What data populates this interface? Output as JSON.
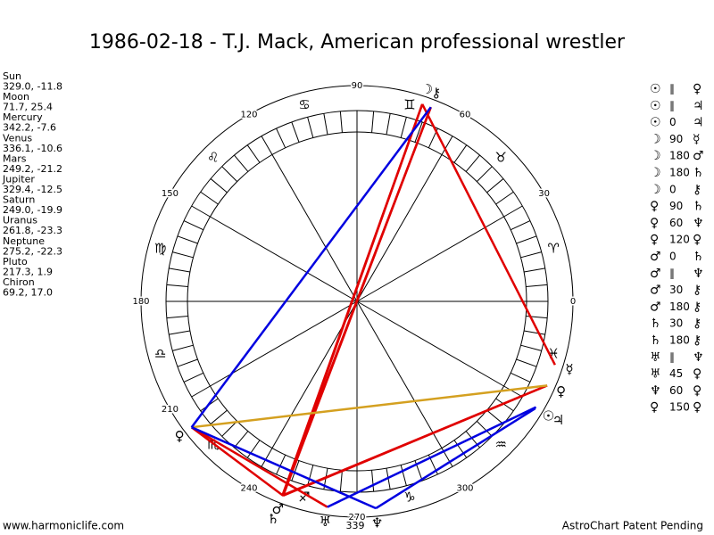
{
  "title": "1986-02-18 - T.J. Mack, American professional wrestler",
  "planets": [
    {
      "name": "Sun",
      "position": "329.0, -11.8",
      "glyph": "☉"
    },
    {
      "name": "Moon",
      "position": "71.7, 25.4",
      "glyph": "☽"
    },
    {
      "name": "Mercury",
      "position": "342.2, -7.6",
      "glyph": "☿"
    },
    {
      "name": "Venus",
      "position": "336.1, -10.6",
      "glyph": "♀"
    },
    {
      "name": "Mars",
      "position": "249.2, -21.2",
      "glyph": "♂"
    },
    {
      "name": "Jupiter",
      "position": "329.4, -12.5",
      "glyph": "♃"
    },
    {
      "name": "Saturn",
      "position": "249.0, -19.9",
      "glyph": "♄"
    },
    {
      "name": "Uranus",
      "position": "261.8, -23.3",
      "glyph": "♅"
    },
    {
      "name": "Neptune",
      "position": "275.2, -22.3",
      "glyph": "♆"
    },
    {
      "name": "Pluto",
      "position": "217.3, 1.9",
      "glyph": "♀"
    },
    {
      "name": "Chiron",
      "position": "69.2, 17.0",
      "glyph": "⚷"
    }
  ],
  "aspects": [
    [
      "☉",
      "∥",
      "♀"
    ],
    [
      "☉",
      "∥",
      "♃"
    ],
    [
      "☉",
      "0",
      "♃"
    ],
    [
      "☽",
      "90",
      "☿"
    ],
    [
      "☽",
      "180",
      "♂"
    ],
    [
      "☽",
      "180",
      "♄"
    ],
    [
      "☽",
      "0",
      "⚷"
    ],
    [
      "♀",
      "90",
      "♄"
    ],
    [
      "♀",
      "60",
      "♆"
    ],
    [
      "♀",
      "120",
      "♀"
    ],
    [
      "♂",
      "0",
      "♄"
    ],
    [
      "♂",
      "∥",
      "♆"
    ],
    [
      "♂",
      "30",
      "⚷"
    ],
    [
      "♂",
      "180",
      "⚷"
    ],
    [
      "♄",
      "30",
      "⚷"
    ],
    [
      "♄",
      "180",
      "⚷"
    ],
    [
      "♅",
      "∥",
      "♆"
    ],
    [
      "♅",
      "45",
      "♀"
    ],
    [
      "♆",
      "60",
      "♀"
    ],
    [
      "♀",
      "150",
      "♀"
    ]
  ],
  "wheel": {
    "degree_labels": [
      "0",
      "30",
      "60",
      "90",
      "120",
      "150",
      "180",
      "210",
      "240",
      "270",
      "300"
    ],
    "signs": [
      "♈",
      "♉",
      "♊",
      "♋",
      "♌",
      "♍",
      "♎",
      "♏",
      "♐",
      "♑",
      "♒",
      "♓"
    ],
    "extra_label": "339"
  },
  "footer": {
    "site": "www.harmoniclife.com",
    "notice": "AstroChart Patent Pending"
  }
}
